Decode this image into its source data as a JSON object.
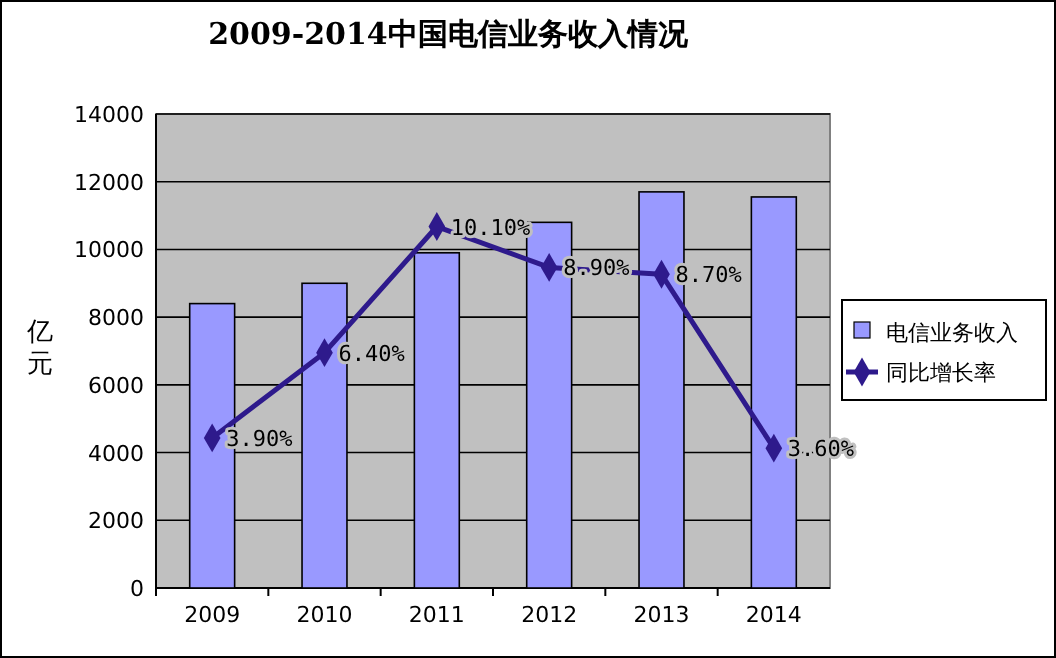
{
  "chart_data": {
    "type": "bar",
    "title": "2009-2014中国电信业务收入情况",
    "ylabel": "亿元",
    "categories": [
      "2009",
      "2010",
      "2011",
      "2012",
      "2013",
      "2014"
    ],
    "ylim": [
      0,
      14000
    ],
    "yticks": [
      0,
      2000,
      4000,
      6000,
      8000,
      10000,
      12000,
      14000
    ],
    "y2lim": [
      -0.5,
      13.4
    ],
    "tick_labels": "xy",
    "grid": "y",
    "legend": "right",
    "series": [
      {
        "name": "电信业务收入",
        "color": "#9999ff",
        "values": [
          8400,
          9000,
          9900,
          10800,
          11700,
          11550
        ]
      },
      {
        "name": "同比增长率",
        "type": "line",
        "axis": "y2",
        "color": "#2e1a8c",
        "marker": "diamond",
        "values": [
          3.9,
          6.4,
          10.1,
          8.9,
          8.7,
          3.6
        ],
        "value_labels": [
          "3.90%",
          "6.40%",
          "10.10%",
          "8.90%",
          "8.70%",
          "3.60%"
        ]
      }
    ]
  }
}
